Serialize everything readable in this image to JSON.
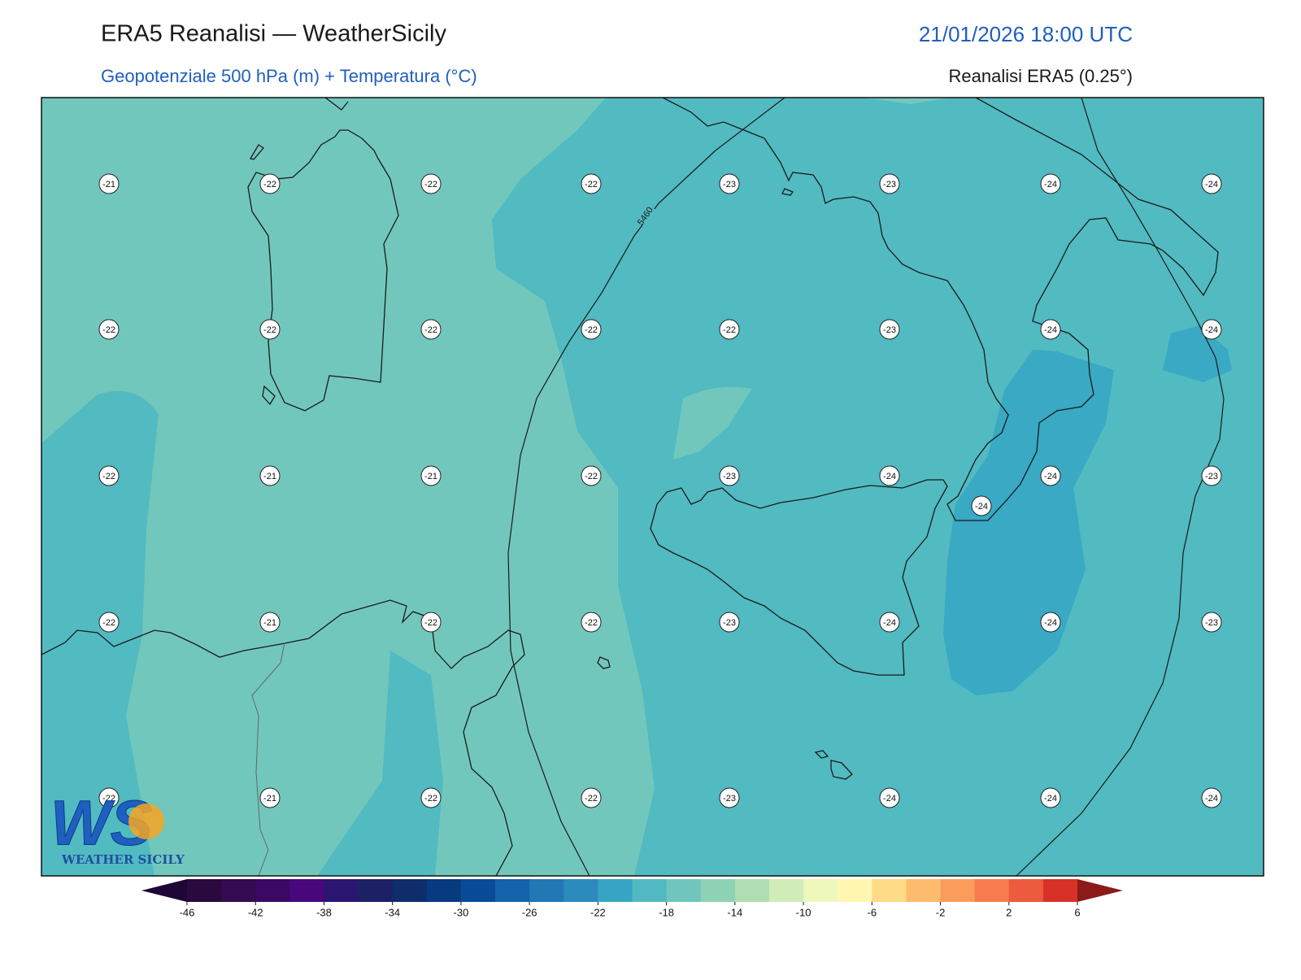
{
  "header": {
    "title": "ERA5 Reanalisi — WeatherSicily",
    "datetime": "21/01/2026 18:00 UTC",
    "subtitle": "Geopotenziale 500 hPa (m) + Temperatura (°C)",
    "source": "Reanalisi ERA5 (0.25°)"
  },
  "map": {
    "contour_labels": [
      5460
    ],
    "temperature_labels": [
      [
        -21,
        -22,
        -22,
        -22,
        -23,
        -23,
        -24,
        -24
      ],
      [
        -22,
        -22,
        -22,
        -22,
        -22,
        -23,
        -24,
        -24
      ],
      [
        -22,
        -21,
        -21,
        -22,
        -23,
        -24,
        -24,
        -23
      ],
      [
        -22,
        -21,
        -22,
        -22,
        -23,
        -24,
        -24,
        -23
      ],
      [
        -22,
        -21,
        -22,
        -22,
        -23,
        -24,
        -24,
        -24
      ]
    ],
    "extra_labels": [
      -24
    ]
  },
  "colorbar": {
    "ticks": [
      -46,
      -42,
      -38,
      -34,
      -30,
      -26,
      -22,
      -18,
      -14,
      -10,
      -6,
      -2,
      2,
      6
    ],
    "colors": [
      "#2a0a3e",
      "#340a50",
      "#3c0866",
      "#48077a",
      "#2a1670",
      "#1c2166",
      "#0f2d6b",
      "#083a80",
      "#0a4b98",
      "#1463ab",
      "#2277b5",
      "#2b8bbd",
      "#37a4c4",
      "#52b9c2",
      "#70c6bd",
      "#8dd2b5",
      "#b0deb2",
      "#d0ecb8",
      "#eef8bb",
      "#fff6b0",
      "#fedb87",
      "#fdbb6e",
      "#fc9c5c",
      "#f77b4e",
      "#ec5b3d",
      "#d83228"
    ],
    "extend_colors": [
      "#1e0636",
      "#8b1a1a"
    ]
  },
  "logo": {
    "mark": "WS",
    "text": "WEATHER SICILY"
  }
}
